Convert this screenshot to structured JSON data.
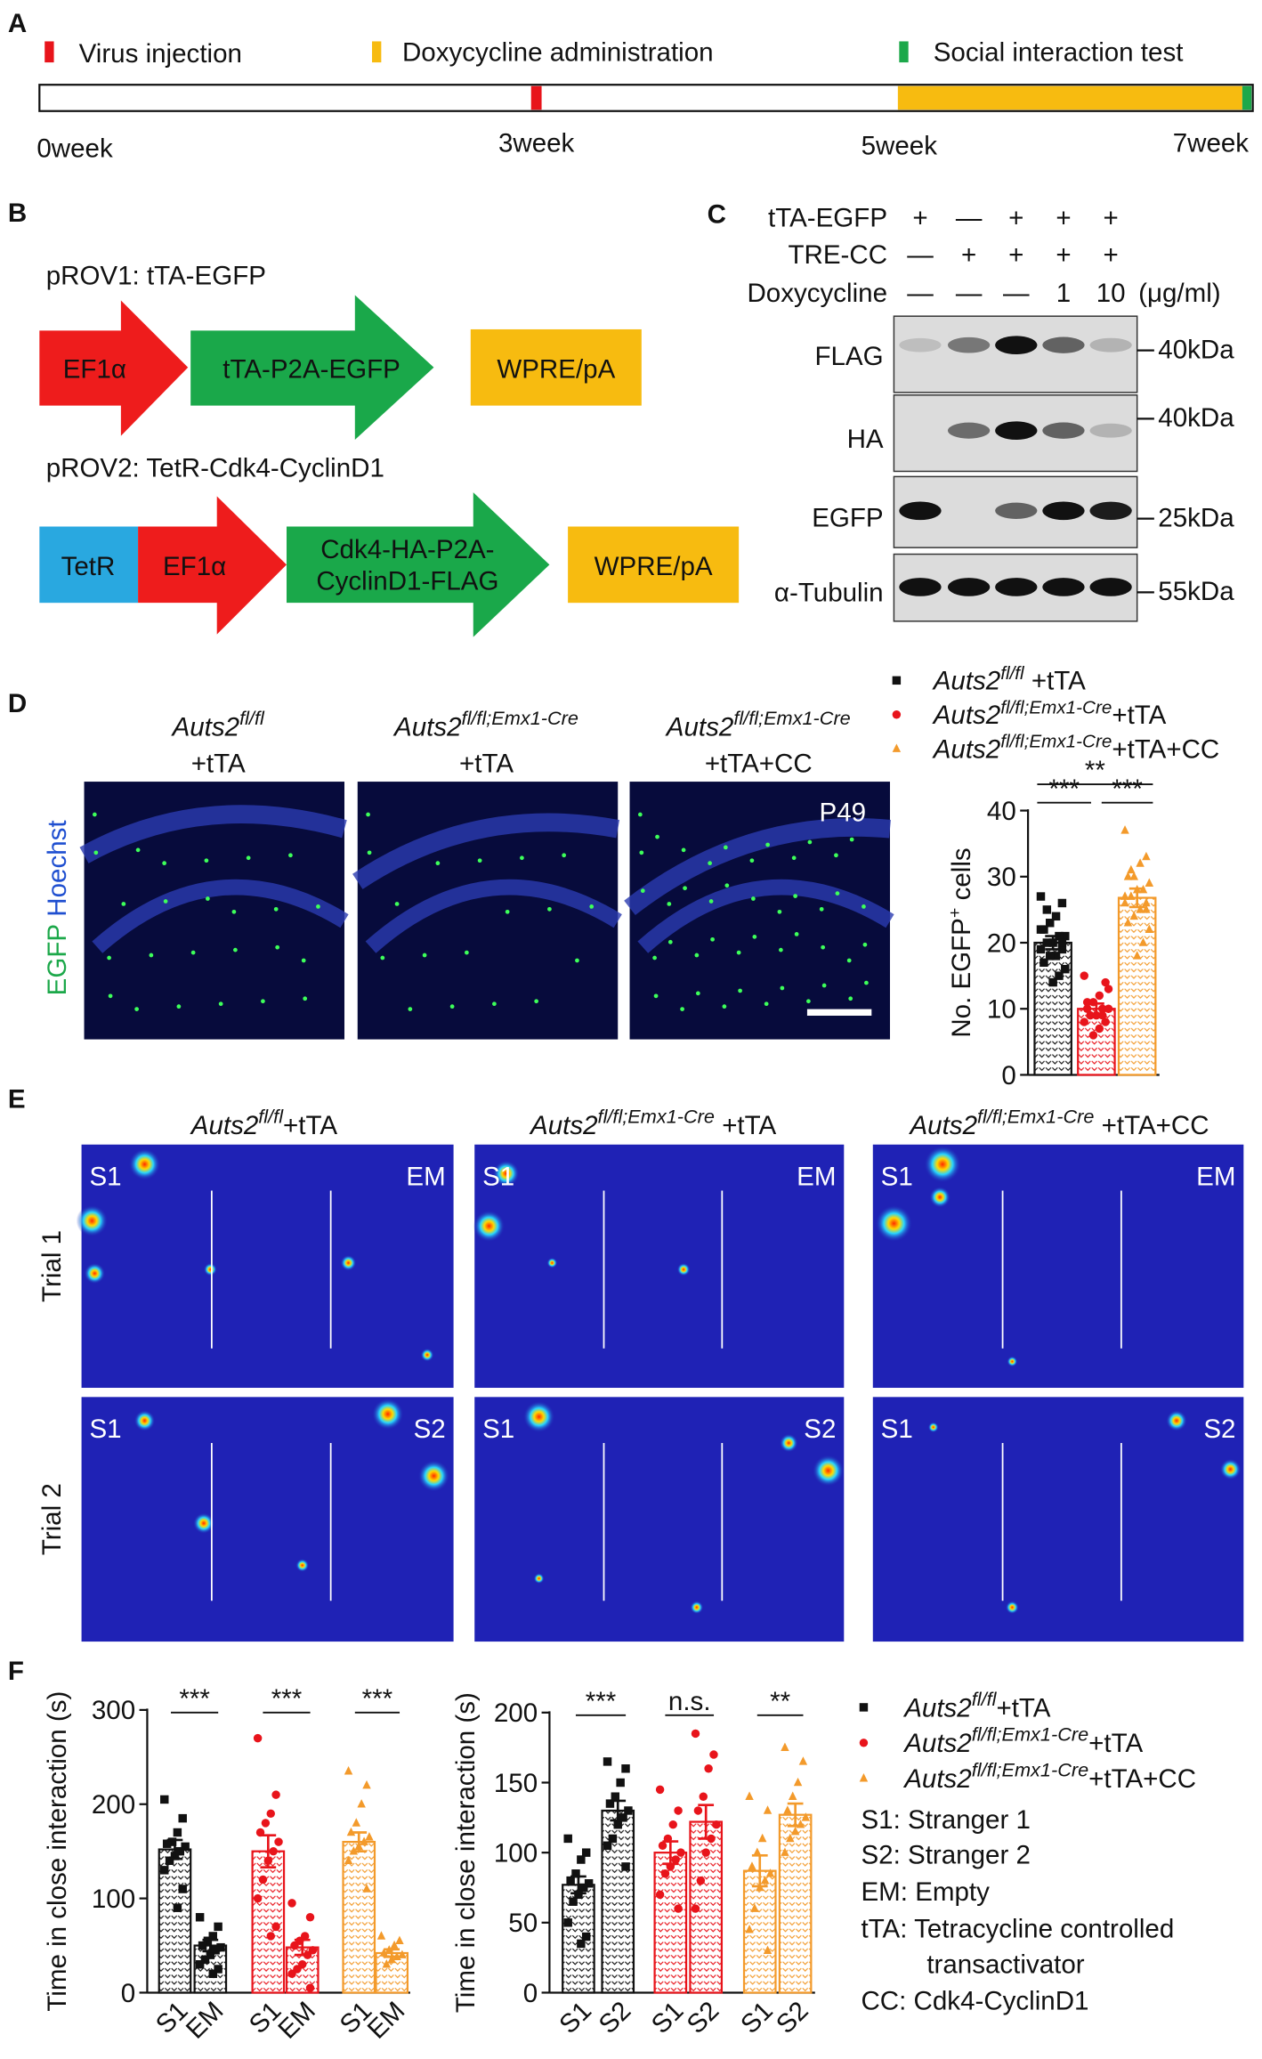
{
  "panel_a": {
    "label": "A",
    "legend": [
      "Virus injection",
      "Doxycycline administration",
      "Social interaction test"
    ],
    "timeline": [
      "0week",
      "3week",
      "5week",
      "7week"
    ]
  },
  "panel_b": {
    "label": "B",
    "construct1": {
      "title": "pROV1: tTA-EGFP",
      "parts": [
        "EF1α",
        "tTA-P2A-EGFP",
        "WPRE/pA"
      ]
    },
    "construct2": {
      "title": "pROV2: TetR-Cdk4-CyclinD1",
      "parts": [
        "TetR",
        "EF1α",
        [
          "Cdk4-HA-P2A-",
          "CyclinD1-FLAG"
        ],
        "WPRE/pA"
      ]
    }
  },
  "panel_c": {
    "label": "C",
    "conditions": [
      {
        "name": "tTA-EGFP",
        "lanes": [
          "+",
          "—",
          "+",
          "+",
          "+"
        ]
      },
      {
        "name": "TRE-CC",
        "lanes": [
          "—",
          "+",
          "+",
          "+",
          "+"
        ]
      },
      {
        "name": "Doxycycline",
        "lanes": [
          "—",
          "—",
          "—",
          "1",
          "10"
        ],
        "unit": "(μg/ml)"
      }
    ],
    "blots": [
      {
        "name": "FLAG",
        "size": "40kDa"
      },
      {
        "name": "HA",
        "size": "40kDa"
      },
      {
        "name": "EGFP",
        "size": "25kDa"
      },
      {
        "name": "α-Tubulin",
        "size": "55kDa"
      }
    ]
  },
  "panel_d": {
    "label": "D",
    "stain": [
      "EGFP",
      "Hoechst"
    ],
    "age": "P49",
    "images": [
      {
        "genotype": "Auts2",
        "genotype_sup": "fl/fl",
        "treatment": "+tTA"
      },
      {
        "genotype": "Auts2",
        "genotype_sup": "fl/fl;Emx1-Cre",
        "treatment": "+tTA"
      },
      {
        "genotype": "Auts2",
        "genotype_sup": "fl/fl;Emx1-Cre",
        "treatment": "+tTA+CC"
      }
    ]
  },
  "panel_e": {
    "label": "E",
    "columns": [
      {
        "genotype": "Auts2",
        "genotype_sup": "fl/fl",
        "treatment": "+tTA"
      },
      {
        "genotype": "Auts2",
        "genotype_sup": "fl/fl;Emx1-Cre",
        "treatment": " +tTA"
      },
      {
        "genotype": "Auts2",
        "genotype_sup": "fl/fl;Emx1-Cre",
        "treatment": " +tTA+CC"
      }
    ],
    "trials": [
      {
        "name": "Trial 1",
        "left": "S1",
        "right": "EM"
      },
      {
        "name": "Trial 2",
        "left": "S1",
        "right": "S2"
      }
    ]
  },
  "panel_f": {
    "label": "F",
    "notes": [
      "S1: Stranger 1",
      "S2: Stranger 2",
      "EM: Empty",
      "tTA: Tetracycline controlled",
      "transactivator",
      "CC: Cdk4-CyclinD1"
    ]
  },
  "chart_data": [
    {
      "type": "bar",
      "ylabel": "No. EGFP",
      "ylabel_sup": "+",
      "ylabel_suffix": " cells",
      "ylim": [
        0,
        40
      ],
      "yticks": [
        0,
        10,
        20,
        30,
        40
      ],
      "annotations": [
        "***",
        "***",
        "**"
      ],
      "series": [
        {
          "name": "Auts2",
          "name_sup": "fl/fl",
          "name_suffix": " +tTA",
          "color": "#111111",
          "marker": "square",
          "values": [
            20
          ],
          "errors": [
            1
          ],
          "points": [
            [
              27,
              26,
              24,
              23,
              22,
              21,
              21,
              20,
              20,
              19,
              19,
              18,
              18,
              17,
              16,
              15,
              14,
              25,
              22,
              20
            ]
          ]
        },
        {
          "name": "Auts2",
          "name_sup": "fl/fl;Emx1-Cre",
          "name_suffix": "+tTA",
          "color": "#e8141b",
          "marker": "circle",
          "values": [
            10
          ],
          "errors": [
            0.8
          ],
          "points": [
            [
              15,
              14,
              12,
              11,
              10,
              10,
              10,
              9,
              9,
              8,
              8,
              7,
              6,
              11,
              13,
              9
            ]
          ]
        },
        {
          "name": "Auts2",
          "name_sup": "fl/fl;Emx1-Cre",
          "name_suffix": "+tTA+CC",
          "color": "#f39a2b",
          "marker": "triangle",
          "values": [
            26.8
          ],
          "errors": [
            1.4
          ],
          "points": [
            [
              37,
              33,
              32,
              30,
              30,
              29,
              28,
              28,
              27,
              27,
              26,
              25,
              24,
              23,
              22,
              20,
              18,
              31,
              26,
              25
            ]
          ]
        }
      ]
    },
    {
      "type": "bar",
      "ylabel": "Time in close interaction (s)",
      "categories": [
        "S1",
        "EM"
      ],
      "ylim": [
        0,
        300
      ],
      "yticks": [
        0,
        100,
        200,
        300
      ],
      "annotations": [
        "***",
        "***",
        "***"
      ],
      "series": [
        {
          "name": "Auts2",
          "name_sup": "fl/fl",
          "name_suffix": "+tTA",
          "color": "#111111",
          "marker": "square",
          "values": [
            152,
            50
          ],
          "errors": [
            10,
            6
          ],
          "points": [
            [
              205,
              185,
              170,
              160,
              158,
              155,
              150,
              145,
              140,
              130,
              110,
              90
            ],
            [
              80,
              70,
              60,
              55,
              50,
              48,
              45,
              40,
              35,
              30,
              25,
              20
            ]
          ]
        },
        {
          "name": "Auts2",
          "name_sup": "fl/fl;Emx1-Cre",
          "name_suffix": "+tTA",
          "color": "#e8141b",
          "marker": "circle",
          "values": [
            150,
            48
          ],
          "errors": [
            17,
            8
          ],
          "points": [
            [
              270,
              210,
              190,
              180,
              170,
              160,
              150,
              140,
              120,
              100,
              70,
              60
            ],
            [
              95,
              80,
              60,
              55,
              50,
              45,
              40,
              30,
              25,
              20,
              5
            ]
          ]
        },
        {
          "name": "Auts2",
          "name_sup": "fl/fl;Emx1-Cre",
          "name_suffix": "+tTA+CC",
          "color": "#f39a2b",
          "marker": "triangle",
          "values": [
            160,
            42
          ],
          "errors": [
            10,
            4
          ],
          "points": [
            [
              235,
              220,
              200,
              180,
              170,
              165,
              160,
              155,
              150,
              140,
              110
            ],
            [
              60,
              55,
              50,
              45,
              42,
              40,
              38,
              35,
              30
            ]
          ]
        }
      ]
    },
    {
      "type": "bar",
      "ylabel": "Time in close interaction (s)",
      "categories": [
        "S1",
        "S2"
      ],
      "ylim": [
        0,
        200
      ],
      "yticks": [
        0,
        50,
        100,
        150,
        200
      ],
      "annotations": [
        "***",
        "n.s.",
        "**"
      ],
      "series": [
        {
          "name": "Auts2",
          "name_sup": "fl/fl",
          "name_suffix": "+tTA",
          "color": "#111111",
          "marker": "square",
          "values": [
            77,
            130
          ],
          "errors": [
            6,
            7
          ],
          "points": [
            [
              110,
              100,
              95,
              85,
              80,
              78,
              75,
              70,
              65,
              50,
              40,
              35
            ],
            [
              165,
              160,
              150,
              140,
              135,
              130,
              125,
              120,
              110,
              105,
              90
            ]
          ]
        },
        {
          "name": "Auts2",
          "name_sup": "fl/fl;Emx1-Cre",
          "name_suffix": "+tTA",
          "color": "#e8141b",
          "marker": "circle",
          "values": [
            100,
            122
          ],
          "errors": [
            8,
            12
          ],
          "points": [
            [
              145,
              130,
              120,
              110,
              105,
              100,
              95,
              90,
              85,
              70,
              60
            ],
            [
              185,
              170,
              160,
              140,
              130,
              120,
              110,
              100,
              80,
              60
            ]
          ]
        },
        {
          "name": "Auts2",
          "name_sup": "fl/fl;Emx1-Cre",
          "name_suffix": "+tTA+CC",
          "color": "#f39a2b",
          "marker": "triangle",
          "values": [
            87,
            127
          ],
          "errors": [
            11,
            8
          ],
          "points": [
            [
              140,
              130,
              110,
              100,
              90,
              85,
              80,
              75,
              60,
              45,
              30
            ],
            [
              175,
              165,
              150,
              140,
              130,
              125,
              120,
              115,
              110,
              100
            ]
          ]
        }
      ]
    }
  ]
}
